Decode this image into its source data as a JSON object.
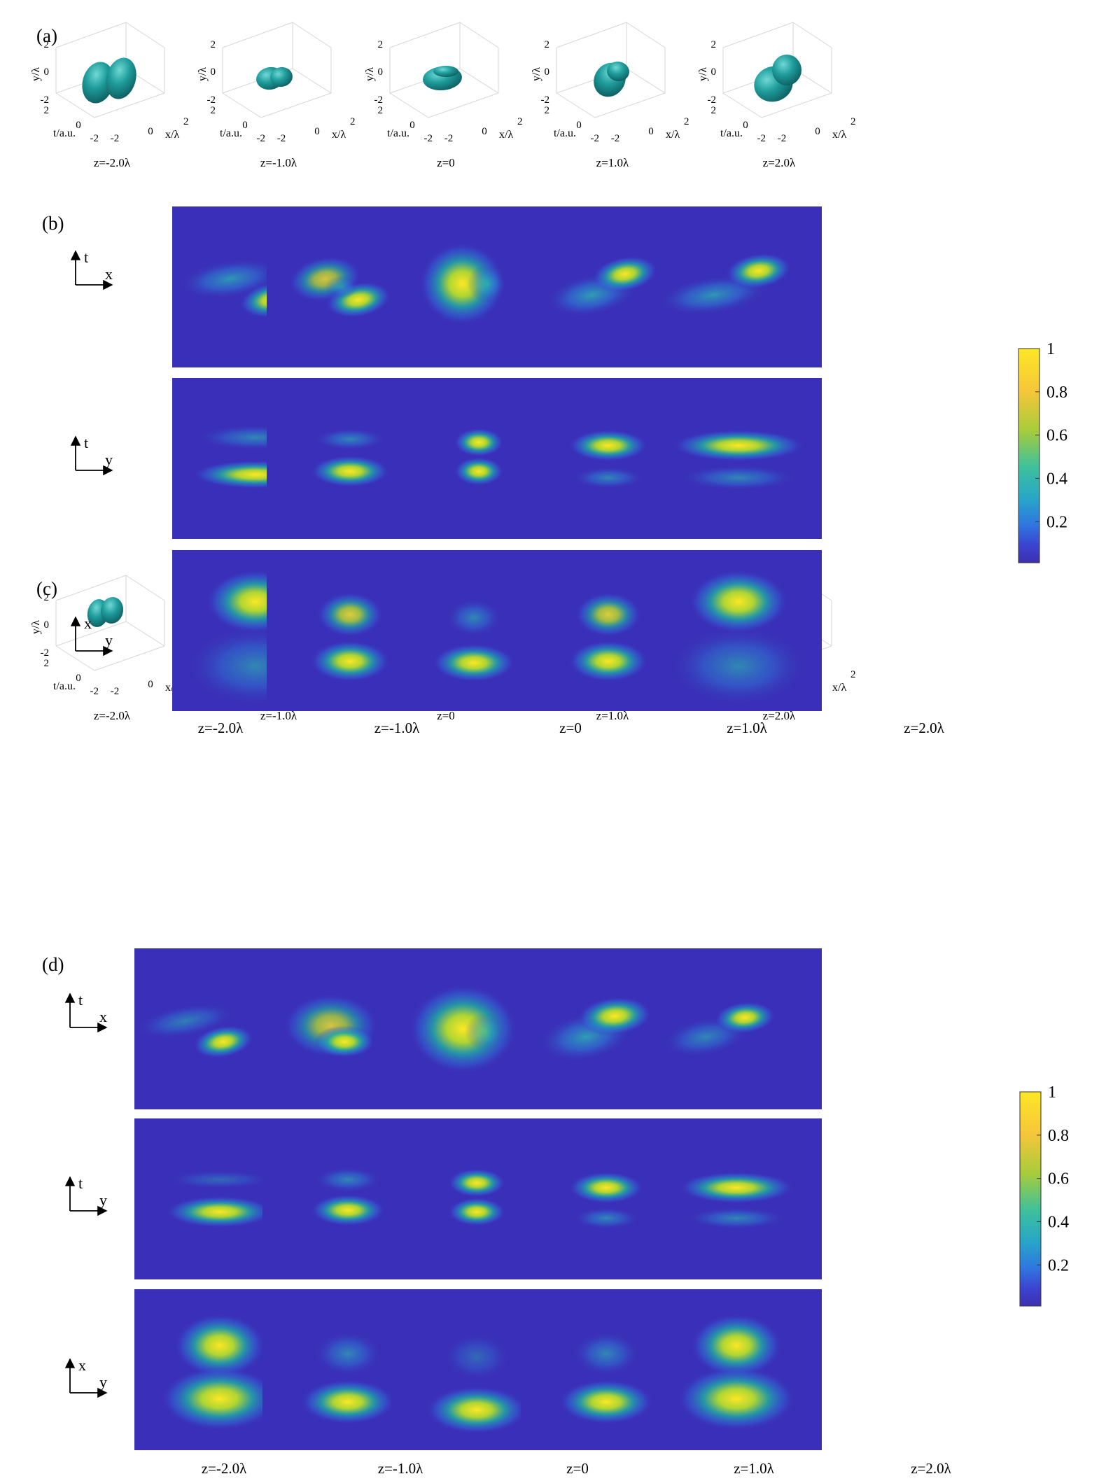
{
  "panel_labels": {
    "a": "(a)",
    "b": "(b)",
    "c": "(c)",
    "d": "(d)"
  },
  "z_labels": [
    "z=-2.0λ",
    "z=-1.0λ",
    "z=0",
    "z=1.0λ",
    "z=2.0λ"
  ],
  "axis3d": {
    "y_label": "y/λ",
    "t_label": "t/a.u.",
    "x_label": "x/λ",
    "tick_2": "2",
    "tick_0": "0",
    "tick_m2": "-2"
  },
  "plane_axes": {
    "tx": {
      "up": "t",
      "right": "x"
    },
    "ty": {
      "up": "t",
      "right": "y"
    },
    "xy": {
      "up": "x",
      "right": "y"
    }
  },
  "colorbar": {
    "ticks": [
      "1",
      "0.8",
      "0.6",
      "0.4",
      "0.2"
    ],
    "colors": [
      "#fde725",
      "#f5c63a",
      "#a8cc3a",
      "#3fc19b",
      "#27a6c7",
      "#2f78e0",
      "#3b43cf",
      "#3d2fb0"
    ]
  },
  "colors": {
    "background": "#3a2fb8",
    "blob": "#1a8c8c"
  }
}
